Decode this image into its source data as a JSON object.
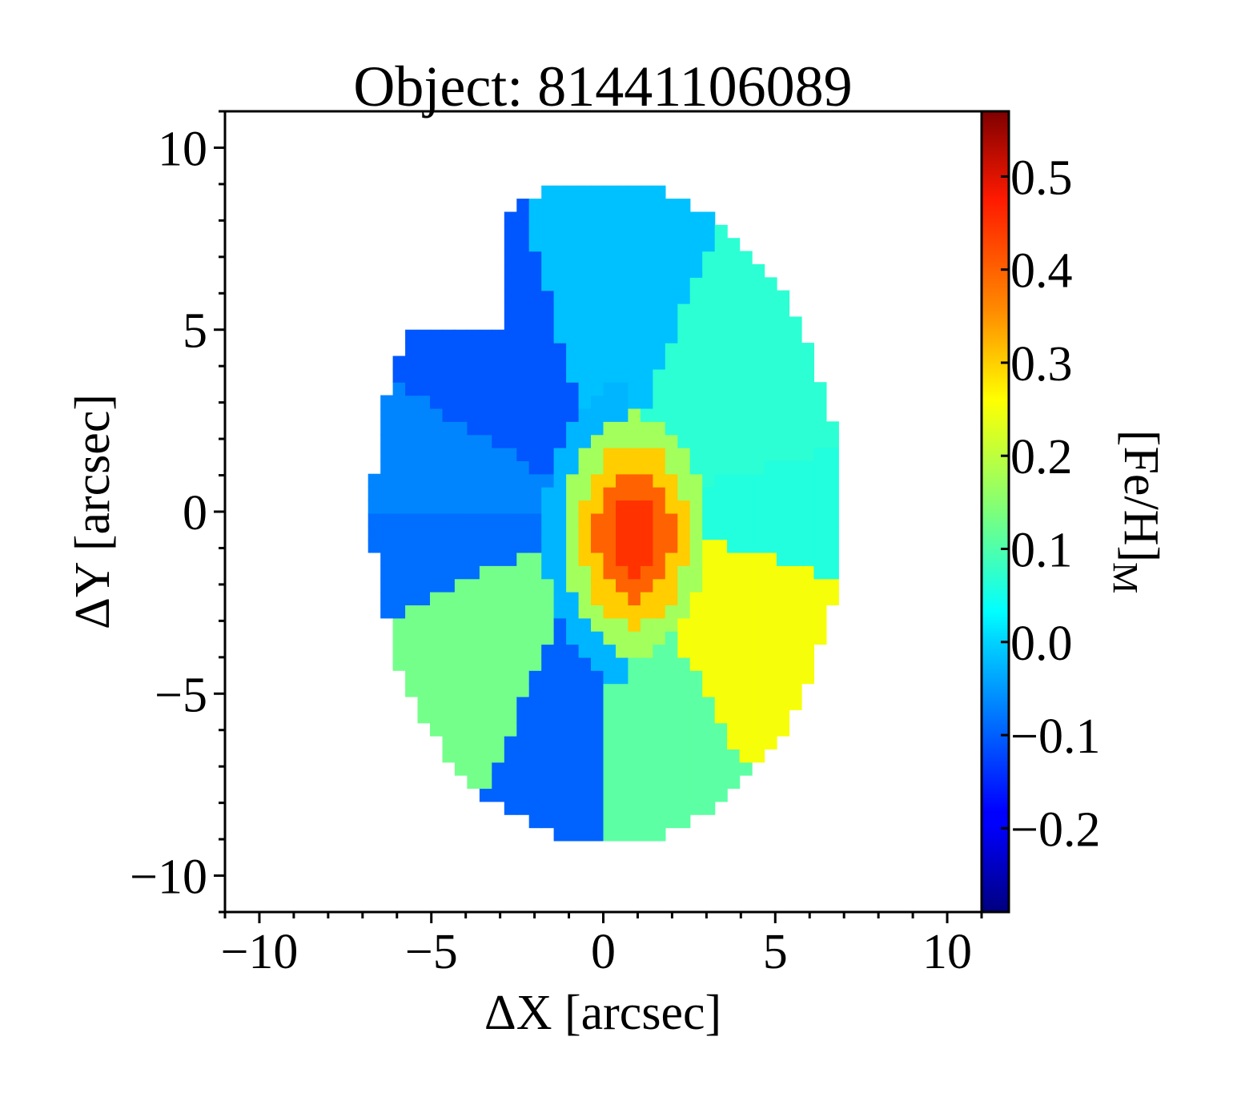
{
  "chart_data": {
    "type": "heatmap",
    "title": "Object: 81441106089",
    "xlabel": "ΔX [arcsec]",
    "ylabel": "ΔY [arcsec]",
    "xlim": [
      -11,
      11
    ],
    "ylim": [
      -11,
      11
    ],
    "x_ticks": [
      -10,
      -5,
      0,
      5,
      10
    ],
    "x_tick_labels": [
      "−10",
      "−5",
      "0",
      "5",
      "10"
    ],
    "y_ticks": [
      10,
      5,
      0,
      -5,
      -10
    ],
    "y_tick_labels": [
      "10",
      "5",
      "0",
      "−5",
      "−10"
    ],
    "colorbar": {
      "label": "[Fe/H]",
      "label_subscript": "M",
      "range": [
        -0.29,
        0.57
      ],
      "ticks": [
        0.5,
        0.4,
        0.3,
        0.2,
        0.1,
        0.0,
        -0.1,
        -0.2
      ],
      "tick_labels": [
        "0.5",
        "0.4",
        "0.3",
        "0.2",
        "0.1",
        "0.0",
        "−0.1",
        "−0.2"
      ],
      "colormap": "jet"
    },
    "map_extent": {
      "center": [
        0.1,
        0.0
      ],
      "semi_axis_x": 6.8,
      "semi_axis_y": 9.1,
      "notch": "upper-left"
    },
    "regions": [
      {
        "name": "north",
        "value": -0.02,
        "a0": 68,
        "a1": 106
      },
      {
        "name": "north-west",
        "value": -0.11,
        "a0": 106,
        "a1": 150
      },
      {
        "name": "west-upper",
        "value": -0.07,
        "a0": 150,
        "a1": 180
      },
      {
        "name": "west-lower",
        "value": -0.09,
        "a0": 180,
        "a1": 205
      },
      {
        "name": "south-west",
        "value": 0.13,
        "a0": 205,
        "a1": 245
      },
      {
        "name": "south-south-west",
        "value": -0.1,
        "a0": 245,
        "a1": 270
      },
      {
        "name": "south",
        "value": 0.11,
        "a0": 270,
        "a1": 300
      },
      {
        "name": "south-east",
        "value": 0.24,
        "a0": 300,
        "a1": 345
      },
      {
        "name": "east",
        "value": 0.06,
        "a0": 345,
        "a1": 375
      },
      {
        "name": "north-east",
        "value": 0.07,
        "a0": 375,
        "a1": 428
      }
    ],
    "core": {
      "center": [
        0.9,
        -0.6
      ],
      "values": {
        "inner": 0.42,
        "middle": 0.38,
        "outer": 0.29,
        "halo": 0.17,
        "gradient_west": -0.03
      }
    }
  }
}
